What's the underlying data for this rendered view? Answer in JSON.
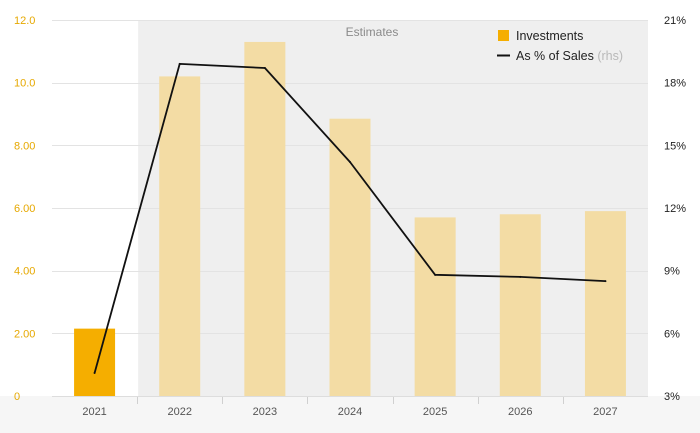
{
  "chart_data": {
    "type": "bar+line",
    "categories": [
      "2021",
      "2022",
      "2023",
      "2024",
      "2025",
      "2026",
      "2027"
    ],
    "series": [
      {
        "name": "Investments",
        "axis": "left",
        "type": "bar",
        "values": [
          2.15,
          10.2,
          11.3,
          8.85,
          5.7,
          5.8,
          5.9
        ],
        "colors": [
          "#f5ae00",
          "#f3dca4",
          "#f3dca4",
          "#f3dca4",
          "#f3dca4",
          "#f3dca4",
          "#f3dca4"
        ]
      },
      {
        "name": "As % of Sales",
        "name_suffix": "(rhs)",
        "axis": "right",
        "type": "line",
        "values": [
          4.1,
          18.9,
          18.7,
          14.2,
          8.8,
          8.7,
          8.5
        ],
        "color": "#111111"
      }
    ],
    "y_left": {
      "min": 0,
      "max": 12,
      "ticks": [
        "0",
        "2.00",
        "4.00",
        "6.00",
        "8.00",
        "10.0",
        "12.0"
      ],
      "color": "#e6a800"
    },
    "y_right": {
      "min": 3,
      "max": 21,
      "ticks": [
        "3%",
        "6%",
        "9%",
        "12%",
        "15%",
        "18%",
        "21%"
      ]
    },
    "shaded_region": {
      "label": "Estimates",
      "from_category": "2022",
      "to_category": "2027",
      "color": "#efefef"
    },
    "legend": {
      "position": "top-right"
    },
    "grid": true
  }
}
